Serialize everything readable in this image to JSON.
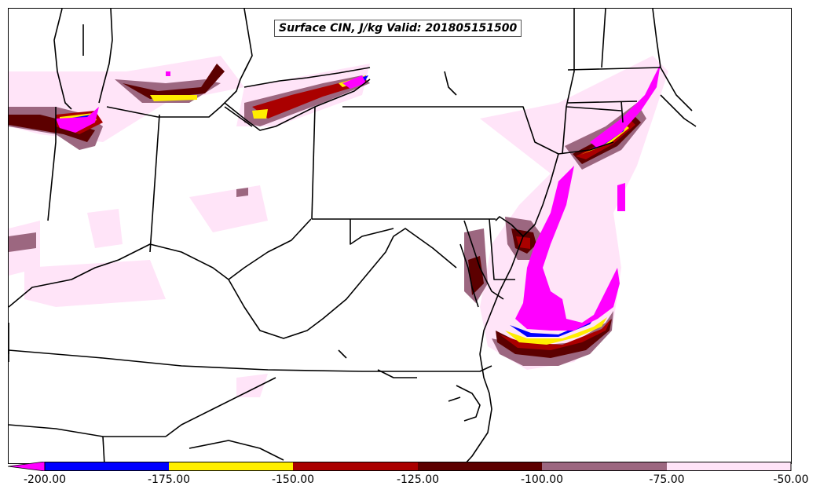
{
  "map": {
    "title": "Surface CIN, J/kg Valid: 201805151500",
    "field": "Surface CIN",
    "units": "J/kg",
    "valid_time": "201805151500"
  },
  "colorbar": {
    "levels": [
      -200.0,
      -175.0,
      -150.0,
      -125.0,
      -100.0,
      -75.0,
      -50.0
    ],
    "tick_labels": [
      "-200.00",
      "-175.00",
      "-150.00",
      "-125.00",
      "-100.00",
      "-75.00",
      "-50.00"
    ],
    "colors": [
      "#0000ff",
      "#ffee00",
      "#aa0000",
      "#5c0000",
      "#9c6780",
      "#ffe4f8"
    ],
    "extend_min_color": "#ff00ff"
  }
}
